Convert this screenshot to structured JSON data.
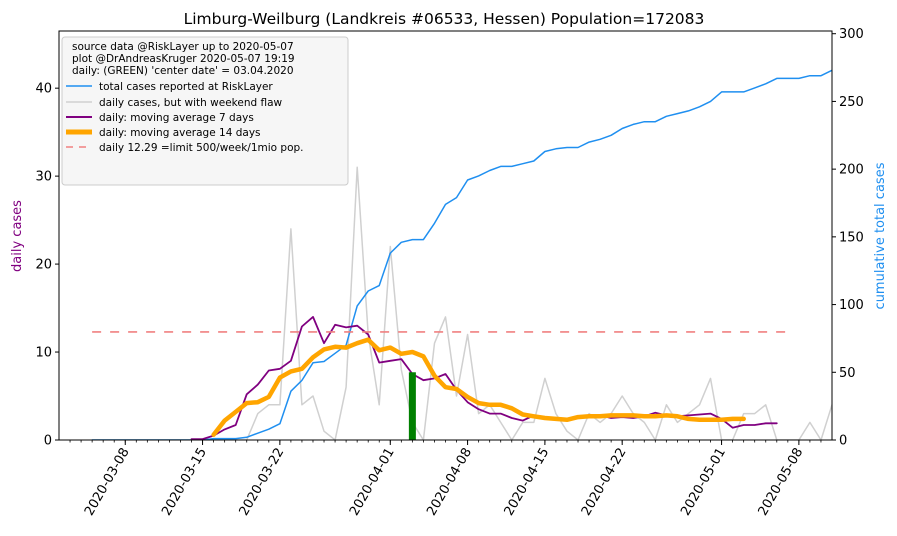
{
  "chart_data": {
    "type": "line",
    "title": "Limburg-Weilburg (Landkreis #06533, Hessen) Population=172083",
    "ylabel_left": "daily cases",
    "ylabel_right": "cumulative total cases",
    "ylim_left": [
      0,
      46.5
    ],
    "ylim_right": [
      0,
      302
    ],
    "x_range": [
      "2020-03-02",
      "2020-05-11"
    ],
    "x_ticks": [
      "2020-03-08",
      "2020-03-15",
      "2020-03-22",
      "2020-04-01",
      "2020-04-08",
      "2020-04-15",
      "2020-04-22",
      "2020-05-01",
      "2020-05-08"
    ],
    "y_ticks_left": [
      0,
      10,
      20,
      30,
      40
    ],
    "y_ticks_right": [
      0,
      50,
      100,
      150,
      200,
      250,
      300
    ],
    "legend_info": [
      "source data @RiskLayer up to 2020-05-07",
      "plot @DrAndreasKruger 2020-05-07 19:19",
      "daily: (GREEN) 'center date' = 03.04.2020"
    ],
    "legend_placement": "top-left",
    "center_date": "2020-04-03",
    "center_bar_value": 7.7,
    "limit_value": 12.29,
    "colors": {
      "total": "#1f8ff0",
      "daily": "#d0d0d0",
      "ma7": "#800080",
      "ma14": "#ffa500",
      "limit": "#f08080",
      "center_bar": "#008000",
      "ylabel_left": "#800080",
      "ylabel_right": "#1f8ff0"
    },
    "series": [
      {
        "name": "total cases reported at RiskLayer",
        "axis": "right",
        "color": "#1f8ff0",
        "start": "2020-03-05",
        "values": [
          0,
          0,
          0,
          0,
          0,
          0,
          0,
          0,
          0,
          0,
          0,
          1,
          1,
          1,
          2,
          5,
          8,
          12,
          36,
          44,
          57,
          58,
          64,
          70,
          99,
          110,
          114,
          138,
          146,
          148,
          148,
          160,
          174,
          179,
          192,
          195,
          199,
          202,
          202,
          204,
          206,
          213,
          215,
          216,
          216,
          220,
          222,
          225,
          230,
          233,
          235,
          235,
          239,
          241,
          243,
          246,
          250,
          257,
          257,
          257,
          260,
          263,
          267,
          267,
          267,
          269,
          269,
          273,
          275
        ]
      },
      {
        "name": "daily cases, but with weekend flaw",
        "axis": "left",
        "color": "#d0d0d0",
        "start": "2020-03-05",
        "values": [
          0,
          0,
          0,
          0,
          0,
          0,
          0,
          0,
          0,
          0,
          0,
          0,
          0,
          0,
          0,
          3,
          4,
          4,
          24,
          4,
          5,
          1,
          0,
          6,
          31,
          12,
          4,
          22,
          8,
          2,
          0,
          11,
          14,
          5,
          12,
          3,
          4,
          2,
          0,
          2,
          2,
          7,
          3,
          1,
          0,
          3,
          2,
          3,
          5,
          3,
          2,
          0,
          4,
          2,
          3,
          4,
          7,
          0,
          0,
          3,
          3,
          4,
          0,
          0,
          0,
          2,
          0,
          4,
          3
        ]
      },
      {
        "name": "daily: moving average 7 days",
        "axis": "left",
        "color": "#800080",
        "start": "2020-03-14",
        "values": [
          0.1,
          0.1,
          0.5,
          1.2,
          1.7,
          5.2,
          6.3,
          7.9,
          8.1,
          9.0,
          12.9,
          14.0,
          11.0,
          13.1,
          12.8,
          13.0,
          12.0,
          8.8,
          9.0,
          9.2,
          7.5,
          6.8,
          7.0,
          7.5,
          5.7,
          4.3,
          3.5,
          3.0,
          3.0,
          2.5,
          2.2,
          2.8,
          2.6,
          2.5,
          2.3,
          2.6,
          2.7,
          2.8,
          2.5,
          2.6,
          2.5,
          2.7,
          3.1,
          2.8,
          2.7,
          2.8,
          2.9,
          3.0,
          2.4,
          1.4,
          1.7,
          1.7,
          1.9,
          1.9
        ]
      },
      {
        "name": "daily: moving average 14 days",
        "axis": "left",
        "color": "#ffa500",
        "start": "2020-03-16",
        "values": [
          0.6,
          2.2,
          3.2,
          4.2,
          4.3,
          4.9,
          7.1,
          7.8,
          8.1,
          9.4,
          10.3,
          10.6,
          10.5,
          11.0,
          11.4,
          10.2,
          10.5,
          9.8,
          10.0,
          9.5,
          7.3,
          6.0,
          5.8,
          4.9,
          4.2,
          4.0,
          4.0,
          3.6,
          2.9,
          2.7,
          2.5,
          2.4,
          2.3,
          2.6,
          2.7,
          2.7,
          2.8,
          2.8,
          2.8,
          2.7,
          2.7,
          2.8,
          2.7,
          2.4,
          2.3,
          2.3,
          2.3,
          2.4,
          2.4
        ]
      },
      {
        "name": "daily 12.29 =limit 500/week/1mio pop.",
        "axis": "left",
        "color": "#f08080",
        "type": "dashed-hline",
        "start": "2020-03-05",
        "end": "2020-05-07"
      }
    ]
  }
}
